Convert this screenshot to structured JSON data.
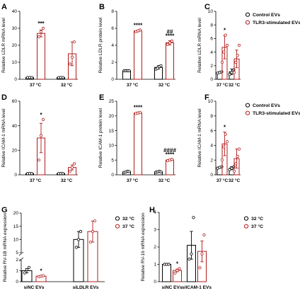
{
  "figure": {
    "legend_ev": [
      "Control EVs",
      "TLR3-stimulated EVs"
    ],
    "legend_temp": [
      "32 °C",
      "37 °C"
    ],
    "colors": {
      "dark": "#000000",
      "red": "#b01c1c"
    }
  },
  "chart_data": [
    {
      "id": "A",
      "type": "bar",
      "ylabel": "Relative LDLR mRNA level",
      "ylim": [
        0,
        40
      ],
      "yticks": [
        0,
        10,
        20,
        30,
        40
      ],
      "categories": [
        "37 °C",
        "32 °C"
      ],
      "series": [
        {
          "color": "dark",
          "values": [
            1,
            1
          ],
          "errors": [
            0.15,
            0.15
          ],
          "points": [
            [
              1,
              1,
              1
            ],
            [
              1,
              1,
              1
            ]
          ]
        },
        {
          "color": "red",
          "values": [
            27,
            15
          ],
          "errors": [
            2,
            7
          ],
          "points": [
            [
              25,
              28,
              30
            ],
            [
              9,
              13,
              22
            ]
          ]
        }
      ],
      "annotations": [
        {
          "category": 0,
          "series": 1,
          "text": "***"
        }
      ]
    },
    {
      "id": "B",
      "type": "bar",
      "ylabel": "Relative LDLR protein level",
      "ylim": [
        0,
        8
      ],
      "yticks": [
        0,
        2,
        4,
        6,
        8
      ],
      "categories": [
        "37 °C",
        "32 °C"
      ],
      "series": [
        {
          "color": "dark",
          "values": [
            1,
            1.4
          ],
          "errors": [
            0.05,
            0.2
          ],
          "points": [
            [
              1,
              1,
              1,
              1
            ],
            [
              1.2,
              1.3,
              1.5,
              1.6
            ]
          ]
        },
        {
          "color": "red",
          "values": [
            5.7,
            4.3
          ],
          "errors": [
            0.1,
            0.25
          ],
          "points": [
            [
              5.6,
              5.7,
              5.8
            ],
            [
              4.1,
              4.3,
              4.5
            ]
          ]
        }
      ],
      "annotations": [
        {
          "category": 0,
          "series": 1,
          "text": "****"
        },
        {
          "category": 1,
          "series": 1,
          "text": "##"
        },
        {
          "category": 1,
          "series": 1,
          "text": "****",
          "row": 1
        }
      ]
    },
    {
      "id": "C",
      "type": "bar",
      "ylabel": "Relative LDLR mRNA level",
      "ylim": [
        0,
        10
      ],
      "yticks": [
        0,
        2,
        4,
        6,
        8,
        10
      ],
      "categories": [
        "37 °C",
        "32 °C"
      ],
      "series": [
        {
          "color": "dark",
          "values": [
            1,
            1.1
          ],
          "errors": [
            0.1,
            0.4
          ],
          "points": [
            [
              0.9,
              1,
              1.1
            ],
            [
              0.7,
              1,
              1.4
            ]
          ]
        },
        {
          "color": "red",
          "values": [
            4.7,
            3
          ],
          "errors": [
            1.7,
            1.3
          ],
          "points": [
            [
              2.5,
              4,
              6.5,
              5
            ],
            [
              1,
              2.5,
              3.5,
              5
            ]
          ]
        }
      ],
      "annotations": [
        {
          "category": 0,
          "series": 1,
          "text": "*"
        }
      ]
    },
    {
      "id": "D",
      "type": "bar",
      "ylabel": "Relative ICAM-1 mRNA level",
      "ylim": [
        0,
        60
      ],
      "yticks": [
        0,
        20,
        40,
        60
      ],
      "categories": [
        "37 °C",
        "32 °C"
      ],
      "series": [
        {
          "color": "dark",
          "values": [
            1,
            1
          ],
          "errors": [
            0.1,
            0.1
          ],
          "points": [
            [
              1,
              1,
              1
            ],
            [
              1,
              1,
              1
            ]
          ]
        },
        {
          "color": "red",
          "values": [
            30,
            6
          ],
          "errors": [
            12,
            2
          ],
          "points": [
            [
              12,
              32,
              45
            ],
            [
              3,
              6,
              9
            ]
          ]
        }
      ],
      "annotations": [
        {
          "category": 0,
          "series": 1,
          "text": "*"
        }
      ]
    },
    {
      "id": "E",
      "type": "bar",
      "ylabel": "Relative ICAM-1 protein level",
      "ylim": [
        0,
        25
      ],
      "yticks": [
        0,
        5,
        10,
        15,
        20,
        25
      ],
      "categories": [
        "37 °C",
        "32 °C"
      ],
      "series": [
        {
          "color": "dark",
          "values": [
            1,
            1
          ],
          "errors": [
            0.2,
            0.2
          ],
          "points": [
            [
              0.8,
              1,
              1.2,
              1.1
            ],
            [
              0.9,
              1,
              1.2,
              1
            ]
          ]
        },
        {
          "color": "red",
          "values": [
            21,
            5
          ],
          "errors": [
            0.3,
            0.3
          ],
          "points": [
            [
              20.8,
              21,
              21.2
            ],
            [
              4.8,
              5,
              5.3
            ]
          ]
        }
      ],
      "annotations": [
        {
          "category": 0,
          "series": 1,
          "text": "****"
        },
        {
          "category": 1,
          "series": 1,
          "text": "####"
        },
        {
          "category": 1,
          "series": 1,
          "text": "****",
          "row": 1
        }
      ]
    },
    {
      "id": "F",
      "type": "bar",
      "ylabel": "Relative ICAM-1 mRNA level",
      "ylim": [
        0,
        10
      ],
      "yticks": [
        0,
        2,
        4,
        6,
        8,
        10
      ],
      "categories": [
        "37 °C",
        "32 °C"
      ],
      "series": [
        {
          "color": "dark",
          "values": [
            1,
            0.9
          ],
          "errors": [
            0.1,
            0.2
          ],
          "points": [
            [
              0.9,
              1,
              1.1
            ],
            [
              0.7,
              0.9,
              1.1
            ]
          ]
        },
        {
          "color": "red",
          "values": [
            4.2,
            2.2
          ],
          "errors": [
            1.6,
            1.3
          ],
          "points": [
            [
              2,
              3.8,
              5.5,
              4.5
            ],
            [
              0.5,
              1.5,
              2.5,
              3.5
            ]
          ]
        }
      ],
      "annotations": [
        {
          "category": 0,
          "series": 1,
          "text": "*"
        }
      ]
    },
    {
      "id": "G",
      "type": "bar",
      "ylabel": "Relative RV-1B mRNA expression",
      "broken_axis": true,
      "ylim_lower": [
        0,
        2
      ],
      "yticks_lower": [
        0,
        1,
        2
      ],
      "ylim_upper": [
        5,
        20
      ],
      "yticks_upper": [
        5,
        10,
        15,
        20
      ],
      "categories": [
        "siNC EVs",
        "siLDLR EVs"
      ],
      "series": [
        {
          "color": "dark",
          "values": [
            1,
            10
          ],
          "errors": [
            0.2,
            3
          ],
          "points": [
            [
              0.8,
              1.1,
              1.3
            ],
            [
              7,
              10,
              13
            ]
          ]
        },
        {
          "color": "red",
          "values": [
            0.5,
            13
          ],
          "errors": [
            0.05,
            4
          ],
          "points": [
            [
              0.45,
              0.5,
              0.55
            ],
            [
              9,
              13,
              17
            ]
          ]
        }
      ],
      "annotations": [
        {
          "category": 0,
          "series": 1,
          "text": "*"
        }
      ]
    },
    {
      "id": "H",
      "type": "bar",
      "ylabel": "Relative RV-16 mRNA expression",
      "ylim": [
        0,
        4
      ],
      "yticks": [
        0,
        1,
        2,
        3,
        4
      ],
      "categories": [
        "siNC EVs",
        "siICAM-1 EVs"
      ],
      "series": [
        {
          "color": "dark",
          "values": [
            1,
            2.1
          ],
          "errors": [
            0.03,
            0.8
          ],
          "points": [
            [
              1,
              1,
              1
            ],
            [
              1.3,
              1.6,
              3.7
            ]
          ]
        },
        {
          "color": "red",
          "values": [
            0.65,
            1.75
          ],
          "errors": [
            0.08,
            0.6
          ],
          "points": [
            [
              0.5,
              0.65,
              0.75
            ],
            [
              0.8,
              1.6,
              2.7
            ]
          ]
        }
      ],
      "annotations": [
        {
          "category": 0,
          "series": 1,
          "text": "*"
        }
      ]
    }
  ]
}
